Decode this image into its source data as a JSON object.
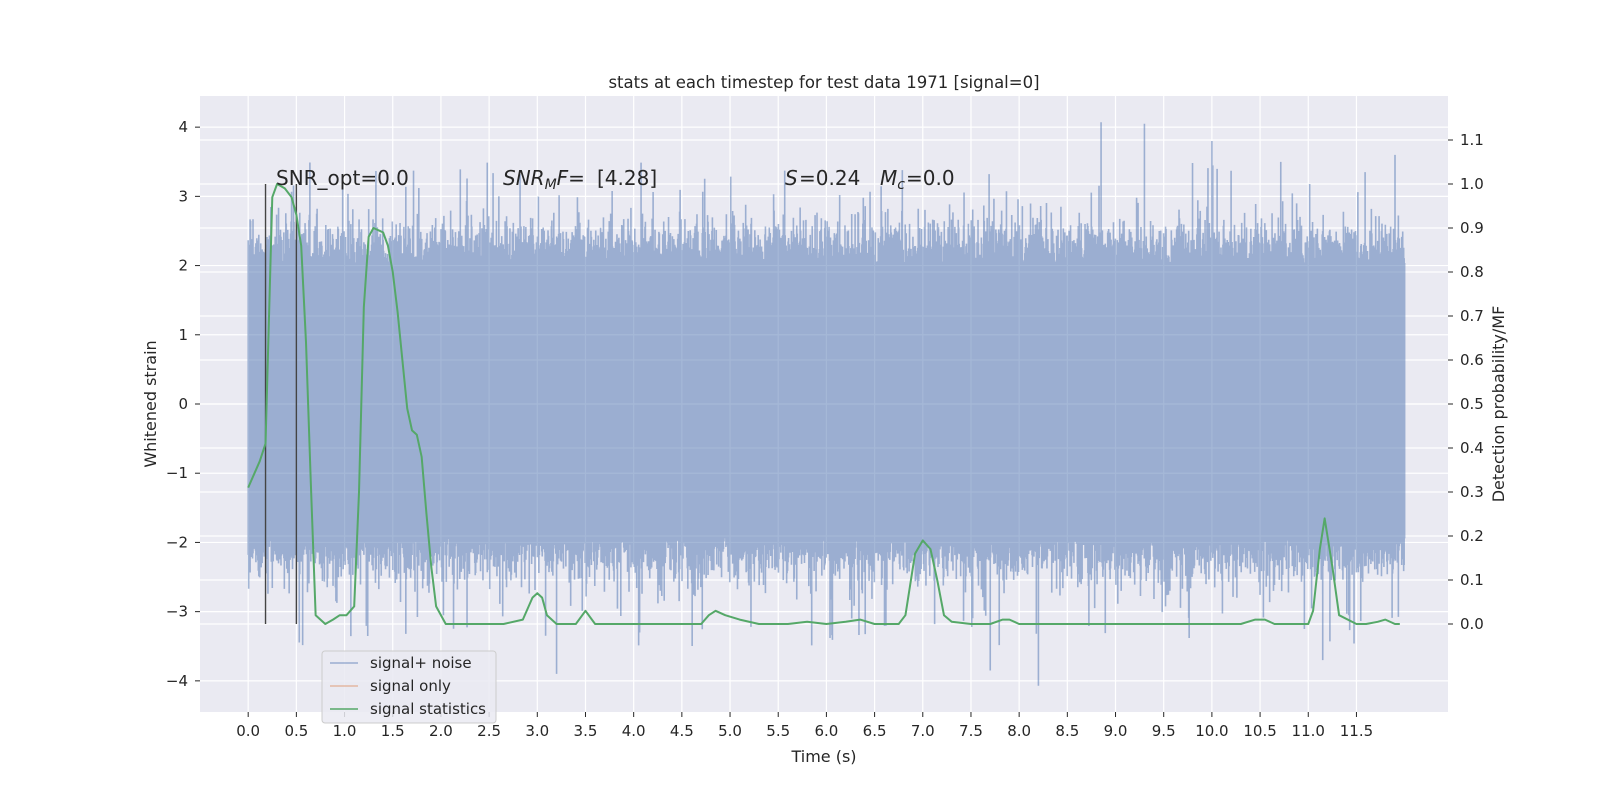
{
  "chart_data": {
    "type": "line",
    "title": "stats at each timestep for test data 1971 [signal=0]",
    "xlabel": "Time (s)",
    "ylabel_left": "Whitened strain",
    "ylabel_right": "Detection probability/MF",
    "xlim": [
      -0.5,
      12.45
    ],
    "ylim_left": [
      -4.45,
      4.45
    ],
    "ylim_right": [
      -0.2,
      1.2
    ],
    "x_ticks": [
      0.0,
      0.5,
      1.0,
      1.5,
      2.0,
      2.5,
      3.0,
      3.5,
      4.0,
      4.5,
      5.0,
      5.5,
      6.0,
      6.5,
      7.0,
      7.5,
      8.0,
      8.5,
      9.0,
      9.5,
      10.0,
      10.5,
      11.0,
      11.5
    ],
    "x_tick_labels": [
      "0.0",
      "0.5",
      "1.0",
      "1.5",
      "2.0",
      "2.5",
      "3.0",
      "3.5",
      "4.0",
      "4.5",
      "5.0",
      "5.5",
      "6.0",
      "6.5",
      "7.0",
      "7.5",
      "8.0",
      "8.5",
      "9.0",
      "9.5",
      "10.0",
      "10.5",
      "11.0",
      "11.5"
    ],
    "y_left_ticks": [
      4,
      3,
      2,
      1,
      0,
      -1,
      -2,
      -3,
      -4
    ],
    "y_left_tick_labels": [
      "4",
      "3",
      "2",
      "1",
      "0",
      "−1",
      "−2",
      "−3",
      "−4"
    ],
    "y_right_ticks": [
      1.1,
      1.0,
      0.9,
      0.8,
      0.7,
      0.6,
      0.5,
      0.4,
      0.3,
      0.2,
      0.1,
      0.0
    ],
    "y_right_tick_labels": [
      "1.1",
      "1.0",
      "0.9",
      "0.8",
      "0.7",
      "0.6",
      "0.5",
      "0.4",
      "0.3",
      "0.2",
      "0.1",
      "0.0"
    ],
    "grid": true,
    "legend_position": "lower-left",
    "annotations": {
      "snr_opt": "SNR_opt=0.0",
      "snr_mf": "[4.28]",
      "s_value": "=0.24",
      "mc_value": "=0.0"
    },
    "vertical_markers_x": [
      0.18,
      0.5
    ],
    "series": [
      {
        "name": "signal+ noise",
        "color": "#4c72b0",
        "axis": "left",
        "x_range": [
          0.0,
          12.0
        ],
        "typical_envelope": [
          -1.9,
          2.0
        ],
        "peaks": [
          {
            "x": 8.85,
            "y": 4.07
          },
          {
            "x": 9.3,
            "y": 4.05
          },
          {
            "x": 8.2,
            "y": -4.07
          },
          {
            "x": 3.2,
            "y": -3.9
          },
          {
            "x": 11.15,
            "y": -3.7
          },
          {
            "x": 10.0,
            "y": 3.8
          },
          {
            "x": 11.9,
            "y": 3.6
          },
          {
            "x": 7.7,
            "y": -3.85
          }
        ]
      },
      {
        "name": "signal only",
        "color": "#dd8452",
        "axis": "left",
        "x": [],
        "y": []
      },
      {
        "name": "signal statistics",
        "color": "#55a868",
        "axis": "right",
        "x": [
          0.0,
          0.12,
          0.18,
          0.25,
          0.3,
          0.38,
          0.45,
          0.5,
          0.55,
          0.6,
          0.65,
          0.7,
          0.75,
          0.8,
          0.88,
          0.95,
          1.02,
          1.1,
          1.15,
          1.2,
          1.25,
          1.3,
          1.4,
          1.45,
          1.5,
          1.55,
          1.6,
          1.65,
          1.7,
          1.75,
          1.8,
          1.85,
          1.9,
          1.95,
          2.05,
          2.1,
          2.2,
          2.5,
          2.65,
          2.85,
          2.95,
          3.0,
          3.05,
          3.1,
          3.2,
          3.4,
          3.5,
          3.6,
          3.8,
          4.0,
          4.4,
          4.7,
          4.78,
          4.85,
          4.95,
          5.1,
          5.3,
          5.6,
          5.8,
          6.0,
          6.2,
          6.35,
          6.5,
          6.6,
          6.75,
          6.82,
          6.92,
          7.0,
          7.08,
          7.15,
          7.22,
          7.3,
          7.5,
          7.7,
          7.83,
          7.9,
          8.0,
          8.2,
          8.5,
          9.0,
          9.5,
          10.0,
          10.3,
          10.45,
          10.55,
          10.65,
          10.8,
          11.0,
          11.05,
          11.12,
          11.17,
          11.25,
          11.32,
          11.5,
          11.6,
          11.72,
          11.8,
          11.9,
          11.95
        ],
        "y": [
          0.31,
          0.37,
          0.41,
          0.97,
          1.0,
          0.99,
          0.97,
          0.93,
          0.86,
          0.64,
          0.32,
          0.02,
          0.01,
          0.0,
          0.01,
          0.02,
          0.02,
          0.04,
          0.3,
          0.72,
          0.88,
          0.9,
          0.89,
          0.86,
          0.8,
          0.71,
          0.6,
          0.49,
          0.44,
          0.43,
          0.38,
          0.25,
          0.13,
          0.04,
          0.0,
          0.0,
          0.0,
          0.0,
          0.0,
          0.01,
          0.06,
          0.07,
          0.06,
          0.02,
          0.0,
          0.0,
          0.03,
          0.0,
          0.0,
          0.0,
          0.0,
          0.0,
          0.02,
          0.03,
          0.02,
          0.01,
          0.0,
          0.0,
          0.005,
          0.0,
          0.005,
          0.01,
          0.0,
          0.0,
          0.0,
          0.02,
          0.16,
          0.19,
          0.17,
          0.1,
          0.02,
          0.005,
          0.0,
          0.0,
          0.01,
          0.01,
          0.0,
          0.0,
          0.0,
          0.0,
          0.0,
          0.0,
          0.0,
          0.01,
          0.01,
          0.0,
          0.0,
          0.0,
          0.03,
          0.17,
          0.24,
          0.13,
          0.02,
          0.0,
          0.0,
          0.005,
          0.01,
          0.0,
          0.0
        ]
      }
    ]
  }
}
